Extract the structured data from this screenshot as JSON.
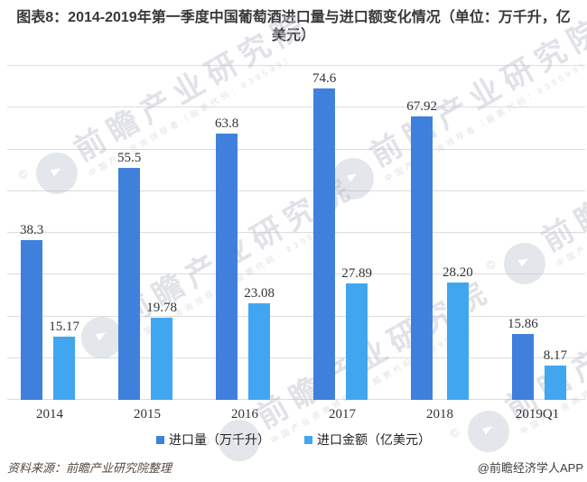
{
  "title": "图表8：2014-2019年第一季度中国葡萄酒进口量与进口额变化情况（单位：万千升，亿美元）",
  "chart_data": {
    "type": "bar",
    "categories": [
      "2014",
      "2015",
      "2016",
      "2017",
      "2018",
      "2019Q1"
    ],
    "series": [
      {
        "name": "进口量（万千升）",
        "color": "#4080DD",
        "values": [
          38.3,
          55.5,
          63.8,
          74.6,
          67.92,
          15.86
        ]
      },
      {
        "name": "进口金额（亿美元）",
        "color": "#41A6F0",
        "values": [
          15.17,
          19.78,
          23.08,
          27.89,
          28.2,
          8.17
        ]
      }
    ],
    "value_labels": [
      [
        "38.3",
        "55.5",
        "63.8",
        "74.6",
        "67.92",
        "15.86"
      ],
      [
        "15.17",
        "19.78",
        "23.08",
        "27.89",
        "28.20",
        "8.17"
      ]
    ],
    "title": "图表8：2014-2019年第一季度中国葡萄酒进口量与进口额变化情况（单位：万千升，亿美元）",
    "xlabel": "",
    "ylabel": "",
    "ylim": [
      0,
      80
    ],
    "ytick_interval": 10,
    "grid": true,
    "gridline_color": "#dcdcdc",
    "legend_position": "bottom"
  },
  "footer": {
    "source": "资料来源：前瞻产业研究院整理",
    "app": "@前瞻经济学人APP"
  },
  "watermark": {
    "copyright": "©",
    "text": "前瞻产业研究院",
    "subtext": "中国产业咨询领导者（股票代码：839599）"
  }
}
